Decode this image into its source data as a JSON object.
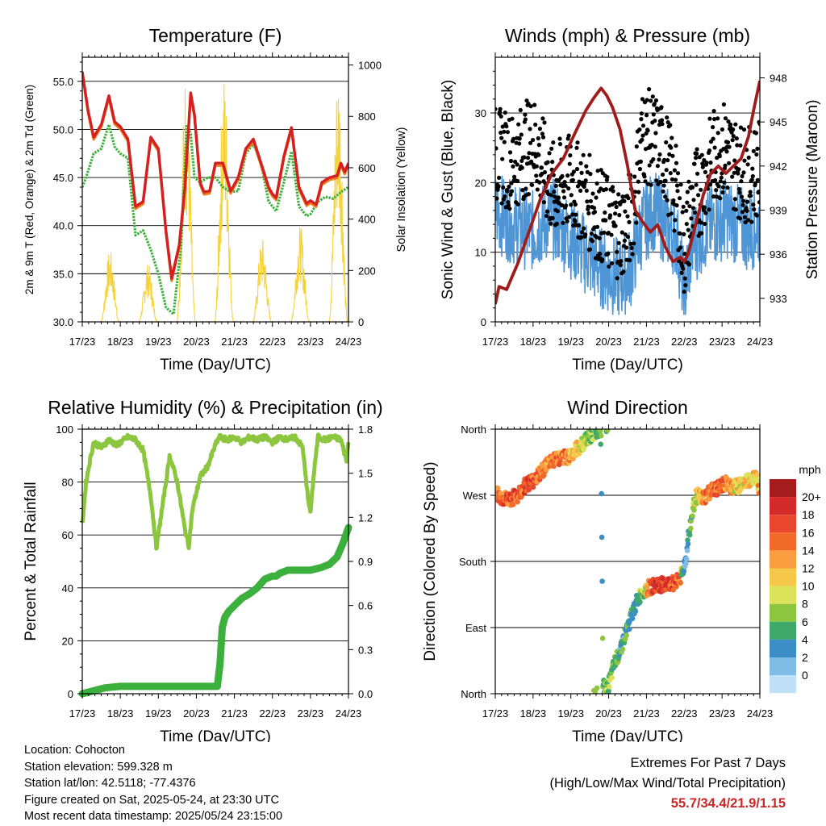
{
  "chart_data": [
    {
      "id": "temperature",
      "type": "line",
      "title": "Temperature (F)",
      "xlabel": "Time (Day/UTC)",
      "ylabel": "2m & 9m T (Red, Orange) & 2m Td (Green)",
      "y2label": "Solar Insolation (Yellow)",
      "x_ticks": [
        "17/23",
        "18/23",
        "19/23",
        "20/23",
        "21/23",
        "22/23",
        "23/23",
        "24/23"
      ],
      "xlim": [
        0,
        7
      ],
      "ylim": [
        30,
        57.5
      ],
      "y_ticks": [
        "30.0",
        "35.0",
        "40.0",
        "45.0",
        "50.0",
        "55.0"
      ],
      "y2lim": [
        0,
        1030
      ],
      "y2_ticks": [
        "0",
        "200",
        "400",
        "600",
        "800",
        "1000"
      ],
      "grid": true,
      "colors": {
        "temp2m": "#d42020",
        "temp9m": "#f07c1c",
        "dewpoint": "#3cb03c",
        "solar": "#f5d33a"
      },
      "series": [
        {
          "key": "temp2m",
          "x": [
            0,
            0.15,
            0.3,
            0.5,
            0.7,
            0.85,
            1.0,
            1.2,
            1.4,
            1.6,
            1.8,
            2.0,
            2.2,
            2.35,
            2.55,
            2.7,
            2.85,
            2.95,
            3.1,
            3.2,
            3.35,
            3.5,
            3.7,
            3.9,
            4.1,
            4.3,
            4.5,
            4.7,
            4.9,
            5.0,
            5.1,
            5.3,
            5.5,
            5.7,
            5.9,
            6.0,
            6.15,
            6.3,
            6.5,
            6.7,
            6.8,
            6.9,
            7.0
          ],
          "values": [
            56,
            52,
            49.2,
            50.5,
            53.5,
            50.8,
            50.3,
            49,
            42,
            42.5,
            49.2,
            48,
            39.5,
            34.5,
            38,
            44,
            53.8,
            51.5,
            44.5,
            43.5,
            43.6,
            46.5,
            46.5,
            43.6,
            45,
            48,
            49,
            46.5,
            44,
            43.3,
            42.9,
            47.2,
            50.2,
            44,
            42.3,
            42.6,
            42.2,
            44.5,
            45,
            45.2,
            46.5,
            45.6,
            46.5
          ]
        },
        {
          "key": "dewpoint",
          "x": [
            0,
            0.1,
            0.3,
            0.5,
            0.7,
            0.85,
            1.0,
            1.2,
            1.4,
            1.6,
            1.8,
            2.0,
            2.2,
            2.4,
            2.6,
            2.75,
            2.85,
            2.95,
            3.1,
            3.3,
            3.5,
            3.7,
            3.9,
            4.1,
            4.3,
            4.5,
            4.7,
            4.9,
            5.1,
            5.3,
            5.5,
            5.7,
            5.9,
            6.0,
            6.2,
            6.4,
            6.6,
            6.8,
            7.0
          ],
          "values": [
            44,
            45,
            47.5,
            48,
            50.5,
            48.2,
            47.5,
            47,
            39,
            39.5,
            37.5,
            35,
            31.5,
            30.8,
            38,
            50.5,
            49.5,
            45,
            44.5,
            45,
            45,
            44,
            43.5,
            43.6,
            47.5,
            48.5,
            46.5,
            42.5,
            41.5,
            44.5,
            47.7,
            42,
            41,
            41.2,
            42.5,
            43,
            42.8,
            43.5,
            44
          ]
        },
        {
          "key": "solar",
          "days": [
            0,
            1,
            2,
            3,
            4,
            5,
            6
          ],
          "peaks": [
            280,
            230,
            1000,
            980,
            330,
            380,
            1000
          ],
          "start": 0.48,
          "span": 0.5
        }
      ]
    },
    {
      "id": "winds",
      "type": "scatter",
      "title": "Winds (mph) & Pressure (mb)",
      "xlabel": "Time (Day/UTC)",
      "ylabel": "Sonic Wind & Gust (Blue, Black)",
      "y2label": "Station Pressure (Maroon)",
      "x_ticks": [
        "17/23",
        "18/23",
        "19/23",
        "20/23",
        "21/23",
        "22/23",
        "23/23",
        "24/23"
      ],
      "xlim": [
        0,
        7
      ],
      "ylim": [
        0,
        38
      ],
      "y_ticks": [
        "0",
        "10",
        "20",
        "30"
      ],
      "y2lim": [
        931.4,
        949.4
      ],
      "y2_ticks": [
        "933",
        "936",
        "939",
        "942",
        "945",
        "948"
      ],
      "grid": true,
      "colors": {
        "wind": "#4e95d6",
        "gust": "#000000",
        "pressure": "#a01c1c"
      },
      "wind_profile": {
        "x": [
          0,
          0.5,
          1.0,
          1.5,
          2.0,
          2.5,
          3.0,
          3.3,
          3.6,
          3.9,
          4.2,
          4.5,
          4.8,
          5.0,
          5.2,
          5.5,
          5.8,
          6.1,
          6.4,
          6.7,
          7.0
        ],
        "values": [
          16,
          14,
          13,
          15,
          12,
          9,
          7,
          6,
          8,
          14,
          16,
          14,
          12,
          4,
          11,
          13,
          14,
          15,
          14,
          13,
          14
        ]
      },
      "gust_profile": {
        "x": [
          0,
          0.5,
          1.0,
          1.5,
          2.0,
          2.5,
          3.0,
          3.3,
          3.6,
          3.9,
          4.2,
          4.5,
          4.8,
          5.0,
          5.2,
          5.5,
          5.8,
          6.1,
          6.4,
          6.7,
          7.0
        ],
        "values": [
          24,
          23,
          26,
          19,
          20,
          17,
          14,
          13,
          15,
          27,
          26,
          24,
          18,
          10,
          17,
          20,
          24,
          25,
          22,
          21,
          22
        ]
      },
      "pressure": {
        "x": [
          0,
          0.1,
          0.3,
          0.6,
          0.9,
          1.2,
          1.5,
          1.8,
          2.1,
          2.4,
          2.6,
          2.8,
          2.95,
          3.1,
          3.3,
          3.5,
          3.7,
          3.9,
          4.1,
          4.3,
          4.5,
          4.7,
          4.9,
          5.0,
          5.1,
          5.3,
          5.5,
          5.7,
          5.9,
          6.1,
          6.3,
          6.5,
          6.7,
          6.85,
          7.0
        ],
        "values": [
          932.6,
          933.8,
          933.6,
          935.4,
          937.6,
          939.8,
          941.5,
          942.5,
          944.2,
          945.8,
          946.6,
          947.3,
          946.8,
          946.0,
          944.5,
          942.0,
          939.0,
          938.2,
          937.5,
          938.0,
          936.5,
          935.5,
          935.8,
          935.5,
          936.0,
          938.0,
          940.0,
          941.5,
          942.0,
          941.5,
          942.0,
          942.5,
          944.0,
          946.0,
          947.8
        ]
      }
    },
    {
      "id": "rh_precip",
      "type": "line",
      "title": "Relative Humidity (%) & Precipitation (in)",
      "xlabel": "Time (Day/UTC)",
      "ylabel": "Percent & Total Rainfall",
      "x_ticks": [
        "17/23",
        "18/23",
        "19/23",
        "20/23",
        "21/23",
        "22/23",
        "23/23",
        "24/23"
      ],
      "xlim": [
        0,
        7
      ],
      "ylim": [
        0,
        100
      ],
      "y_ticks": [
        "0",
        "20",
        "40",
        "60",
        "80",
        "100"
      ],
      "y2lim": [
        0,
        1.8
      ],
      "y2_ticks": [
        "0.0",
        "0.3",
        "0.6",
        "0.9",
        "1.2",
        "1.5",
        "1.8"
      ],
      "grid": true,
      "colors": {
        "rh": "#8cc63f",
        "precip": "#3cb03c"
      },
      "series": [
        {
          "key": "rh",
          "x": [
            0,
            0.1,
            0.2,
            0.3,
            0.5,
            0.7,
            0.9,
            1.0,
            1.2,
            1.4,
            1.6,
            1.8,
            1.95,
            2.1,
            2.3,
            2.5,
            2.7,
            2.8,
            2.9,
            3.1,
            3.3,
            3.5,
            3.6,
            3.8,
            4.0,
            4.2,
            4.4,
            4.6,
            4.8,
            5.0,
            5.2,
            5.4,
            5.6,
            5.8,
            5.9,
            6.0,
            6.1,
            6.2,
            6.4,
            6.6,
            6.8,
            6.95,
            7.0
          ],
          "values": [
            64,
            80,
            88,
            95,
            93,
            96,
            94,
            95,
            97,
            96,
            92,
            75,
            55,
            70,
            90,
            80,
            62,
            56,
            70,
            82,
            86,
            94,
            97,
            96,
            97,
            95,
            97,
            96,
            97,
            95,
            97,
            96,
            97,
            93,
            78,
            68,
            85,
            97,
            96,
            97,
            96,
            88,
            96
          ]
        },
        {
          "key": "precip",
          "x": [
            0,
            0.3,
            0.6,
            1.0,
            1.5,
            2.0,
            2.5,
            3.0,
            3.3,
            3.55,
            3.62,
            3.68,
            3.75,
            3.85,
            4.0,
            4.2,
            4.4,
            4.6,
            4.8,
            5.0,
            5.1,
            5.2,
            5.4,
            5.6,
            5.8,
            6.0,
            6.3,
            6.5,
            6.7,
            6.85,
            7.0
          ],
          "values": [
            0,
            0.02,
            0.04,
            0.05,
            0.05,
            0.05,
            0.05,
            0.05,
            0.05,
            0.05,
            0.2,
            0.45,
            0.52,
            0.56,
            0.6,
            0.65,
            0.68,
            0.72,
            0.78,
            0.8,
            0.8,
            0.82,
            0.84,
            0.84,
            0.84,
            0.84,
            0.86,
            0.88,
            0.93,
            1.02,
            1.13
          ]
        }
      ]
    },
    {
      "id": "wind_direction",
      "type": "scatter",
      "title": "Wind Direction",
      "xlabel": "Time (Day/UTC)",
      "ylabel": "Direction (Colored By Speed)",
      "x_ticks": [
        "17/23",
        "18/23",
        "19/23",
        "20/23",
        "21/23",
        "22/23",
        "23/23",
        "24/23"
      ],
      "xlim": [
        0,
        7
      ],
      "ylim": [
        0,
        360
      ],
      "y_ticks": [
        "North",
        "East",
        "South",
        "West",
        "North"
      ],
      "grid": true,
      "colorbar": {
        "title": "mph",
        "labels": [
          "20+",
          "18",
          "16",
          "14",
          "12",
          "10",
          "8",
          "6",
          "4",
          "2",
          "0"
        ],
        "colors": [
          "#a61c1c",
          "#d42a2a",
          "#e8472e",
          "#f26a2a",
          "#f99d3e",
          "#f5c84a",
          "#dce35a",
          "#8cc63f",
          "#3fa86b",
          "#3d8dc6",
          "#7fbde6",
          "#bfe0f7"
        ]
      },
      "direction_profile": {
        "x": [
          0,
          0.2,
          0.4,
          0.6,
          0.8,
          1.0,
          1.2,
          1.4,
          1.6,
          1.8,
          2.0,
          2.2,
          2.4,
          2.5,
          2.6,
          2.7,
          2.8,
          2.85,
          2.95,
          3.05,
          3.15,
          3.3,
          3.5,
          3.7,
          3.9,
          4.1,
          4.3,
          4.5,
          4.7,
          4.8,
          4.9,
          4.95,
          5.05,
          5.1,
          5.2,
          5.3,
          5.5,
          5.7,
          5.9,
          6.1,
          6.3,
          6.5,
          6.7,
          6.9,
          7.0
        ],
        "dir": [
          275,
          265,
          265,
          270,
          285,
          290,
          300,
          315,
          320,
          320,
          325,
          335,
          345,
          350,
          355,
          360,
          345,
          10,
          5,
          20,
          40,
          60,
          90,
          120,
          140,
          145,
          148,
          148,
          150,
          155,
          160,
          165,
          185,
          210,
          240,
          270,
          265,
          275,
          280,
          285,
          280,
          285,
          290,
          295,
          280
        ],
        "speed": [
          16,
          17,
          18,
          17,
          18,
          18,
          17,
          15,
          16,
          16,
          14,
          12,
          10,
          10,
          9,
          8,
          8,
          8,
          9,
          8,
          7,
          6,
          7,
          6,
          8,
          18,
          20,
          19,
          18,
          17,
          16,
          6,
          5,
          6,
          7,
          11,
          16,
          17,
          18,
          16,
          13,
          12,
          13,
          14,
          15
        ]
      }
    }
  ],
  "footer": {
    "location": "Location: Cohocton",
    "elevation": "Station elevation: 599.328 m",
    "latlon": "Station lat/lon: 42.5118; -77.4376",
    "created": "Figure created on Sat, 2025-05-24, at 23:30 UTC",
    "latest": "Most recent data timestamp: 2025/05/24 23:15:00",
    "extremes_title": "Extremes For Past 7 Days",
    "extremes_subtitle": "(High/Low/Max Wind/Total Precipitation)",
    "extremes_values": "55.7/34.4/21.9/1.15"
  }
}
